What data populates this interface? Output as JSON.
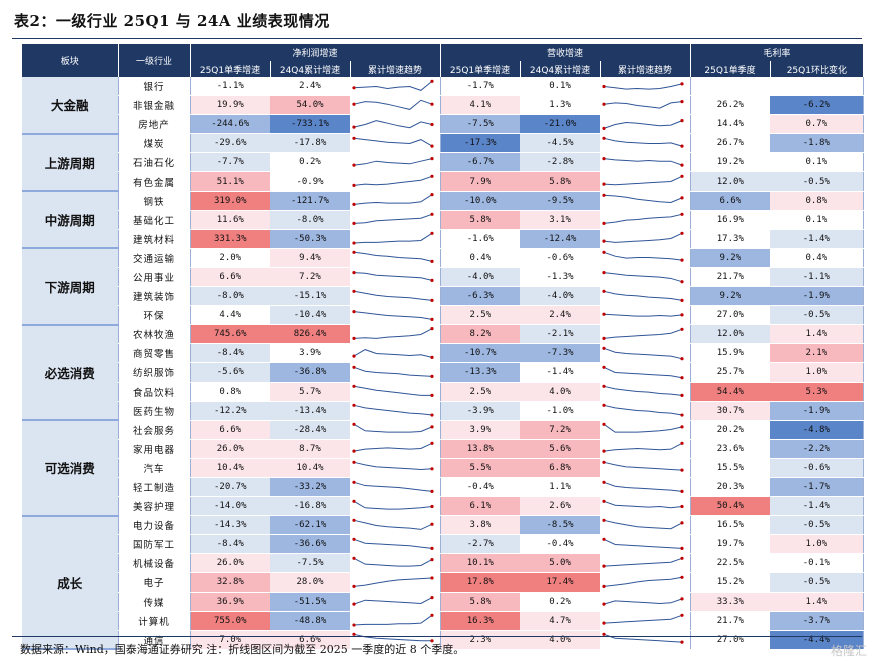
{
  "title": "表2：一级行业 25Q1 与 24A 业绩表现情况",
  "header": {
    "sector": "板块",
    "industry": "一级行业",
    "g_profit": "净利润增速",
    "g_revenue": "营收增速",
    "g_margin": "毛利率",
    "c_q": "25Q1单季增速",
    "c_a": "24Q4累计增速",
    "c_trend": "累计增速趋势",
    "c_m1": "25Q1单季度",
    "c_m2": "25Q1环比变化"
  },
  "colors": {
    "header_bg": "#1f3864",
    "sector_bg": "#dbe4f1",
    "pos_strong": "#f08080",
    "pos_mid": "#f7b8be",
    "pos_light": "#fce5e8",
    "neg_strong": "#5b85c9",
    "neg_mid": "#9db7e0",
    "neg_light": "#dbe4f1",
    "spark_line": "#2f5597",
    "spark_dot": "#c00000"
  },
  "groups": [
    {
      "name": "大金融",
      "rows": [
        {
          "name": "银行",
          "p1": "-1.1%",
          "p2": "2.4%",
          "r1": "-1.7%",
          "r2": "0.1%",
          "m1": "",
          "m2": "",
          "ps": [
            0.4,
            0.45,
            0.5,
            0.35,
            0.45,
            0.5,
            0.2,
            0.9
          ],
          "rs": [
            0.5,
            0.4,
            0.3,
            0.35,
            0.3,
            0.35,
            0.5,
            0.7
          ]
        },
        {
          "name": "非银金融",
          "p1": "19.9%",
          "p2": "54.0%",
          "r1": "4.1%",
          "r2": "1.3%",
          "m1": "26.2%",
          "m2": "-6.2%",
          "ps": [
            0.6,
            0.8,
            0.75,
            0.6,
            0.4,
            0.2,
            0.9,
            0.6
          ],
          "rs": [
            0.6,
            0.7,
            0.65,
            0.5,
            0.4,
            0.3,
            0.7,
            0.8
          ]
        },
        {
          "name": "房地产",
          "p1": "-244.6%",
          "p2": "-733.1%",
          "r1": "-7.5%",
          "r2": "-21.0%",
          "m1": "14.4%",
          "m2": "0.7%",
          "ps": [
            0.3,
            0.5,
            0.8,
            0.6,
            0.4,
            0.25,
            0.7,
            0.5
          ],
          "rs": [
            0.2,
            0.5,
            0.65,
            0.6,
            0.5,
            0.4,
            0.45,
            0.8
          ]
        }
      ]
    },
    {
      "name": "上游周期",
      "rows": [
        {
          "name": "煤炭",
          "p1": "-29.6%",
          "p2": "-17.8%",
          "r1": "-17.3%",
          "r2": "-4.5%",
          "m1": "26.7%",
          "m2": "-1.8%",
          "ps": [
            0.9,
            0.8,
            0.7,
            0.6,
            0.55,
            0.5,
            0.8,
            0.3
          ],
          "rs": [
            0.9,
            0.7,
            0.6,
            0.55,
            0.5,
            0.5,
            0.55,
            0.3
          ]
        },
        {
          "name": "石油石化",
          "p1": "-7.7%",
          "p2": "0.2%",
          "r1": "-6.7%",
          "r2": "-2.8%",
          "m1": "19.2%",
          "m2": "0.1%",
          "ps": [
            0.3,
            0.4,
            0.6,
            0.5,
            0.45,
            0.4,
            0.6,
            0.8
          ],
          "rs": [
            0.8,
            0.7,
            0.65,
            0.6,
            0.65,
            0.6,
            0.6,
            0.3
          ]
        },
        {
          "name": "有色金属",
          "p1": "51.1%",
          "p2": "-0.9%",
          "r1": "7.9%",
          "r2": "5.8%",
          "m1": "12.0%",
          "m2": "-0.5%",
          "ps": [
            0.2,
            0.3,
            0.25,
            0.3,
            0.4,
            0.5,
            0.6,
            0.9
          ],
          "rs": [
            0.3,
            0.25,
            0.3,
            0.35,
            0.4,
            0.45,
            0.5,
            0.9
          ]
        }
      ]
    },
    {
      "name": "中游周期",
      "rows": [
        {
          "name": "钢铁",
          "p1": "319.0%",
          "p2": "-121.7%",
          "r1": "-10.0%",
          "r2": "-9.5%",
          "m1": "6.6%",
          "m2": "0.8%",
          "ps": [
            0.2,
            0.3,
            0.35,
            0.3,
            0.3,
            0.3,
            0.4,
            0.95
          ],
          "rs": [
            0.9,
            0.85,
            0.75,
            0.6,
            0.5,
            0.4,
            0.35,
            0.7
          ]
        },
        {
          "name": "基础化工",
          "p1": "11.6%",
          "p2": "-8.0%",
          "r1": "5.8%",
          "r2": "3.1%",
          "m1": "16.9%",
          "m2": "0.1%",
          "ps": [
            0.2,
            0.25,
            0.4,
            0.45,
            0.5,
            0.55,
            0.6,
            0.9
          ],
          "rs": [
            0.2,
            0.3,
            0.45,
            0.5,
            0.6,
            0.65,
            0.7,
            0.9
          ]
        },
        {
          "name": "建筑材料",
          "p1": "331.3%",
          "p2": "-50.3%",
          "r1": "-1.6%",
          "r2": "-12.4%",
          "m1": "17.3%",
          "m2": "-1.4%",
          "ps": [
            0.15,
            0.2,
            0.2,
            0.25,
            0.3,
            0.3,
            0.35,
            0.9
          ],
          "rs": [
            0.3,
            0.2,
            0.25,
            0.3,
            0.35,
            0.4,
            0.5,
            0.9
          ]
        }
      ]
    },
    {
      "name": "下游周期",
      "rows": [
        {
          "name": "交通运输",
          "p1": "2.0%",
          "p2": "9.4%",
          "r1": "0.4%",
          "r2": "-0.6%",
          "m1": "9.2%",
          "m2": "0.4%",
          "ps": [
            0.9,
            0.8,
            0.65,
            0.6,
            0.5,
            0.45,
            0.4,
            0.2
          ],
          "rs": [
            0.9,
            0.6,
            0.45,
            0.5,
            0.5,
            0.45,
            0.4,
            0.3
          ]
        },
        {
          "name": "公用事业",
          "p1": "6.6%",
          "p2": "7.2%",
          "r1": "-4.0%",
          "r2": "-1.3%",
          "m1": "21.7%",
          "m2": "-1.1%",
          "ps": [
            0.8,
            0.75,
            0.6,
            0.55,
            0.5,
            0.45,
            0.4,
            0.2
          ],
          "rs": [
            0.8,
            0.7,
            0.6,
            0.55,
            0.5,
            0.45,
            0.35,
            0.1
          ]
        },
        {
          "name": "建筑装饰",
          "p1": "-8.0%",
          "p2": "-15.1%",
          "r1": "-6.3%",
          "r2": "-4.0%",
          "m1": "9.2%",
          "m2": "-1.9%",
          "ps": [
            0.9,
            0.75,
            0.6,
            0.5,
            0.45,
            0.4,
            0.3,
            0.2
          ],
          "rs": [
            0.9,
            0.7,
            0.6,
            0.55,
            0.45,
            0.4,
            0.35,
            0.2
          ]
        },
        {
          "name": "环保",
          "p1": "4.4%",
          "p2": "-10.4%",
          "r1": "2.5%",
          "r2": "2.4%",
          "m1": "27.0%",
          "m2": "-0.5%",
          "ps": [
            0.8,
            0.7,
            0.6,
            0.5,
            0.45,
            0.4,
            0.35,
            0.2
          ],
          "rs": [
            0.6,
            0.55,
            0.5,
            0.45,
            0.45,
            0.5,
            0.45,
            0.55
          ]
        }
      ]
    },
    {
      "name": "必选消费",
      "rows": [
        {
          "name": "农林牧渔",
          "p1": "745.6%",
          "p2": "826.4%",
          "r1": "8.2%",
          "r2": "-2.1%",
          "m1": "12.0%",
          "m2": "1.4%",
          "ps": [
            0.2,
            0.25,
            0.2,
            0.3,
            0.35,
            0.4,
            0.5,
            0.95
          ],
          "rs": [
            0.2,
            0.3,
            0.35,
            0.4,
            0.45,
            0.5,
            0.6,
            0.9
          ]
        },
        {
          "name": "商贸零售",
          "p1": "-8.4%",
          "p2": "3.9%",
          "r1": "-10.7%",
          "r2": "-7.3%",
          "m1": "15.9%",
          "m2": "2.1%",
          "ps": [
            0.3,
            0.8,
            0.5,
            0.45,
            0.4,
            0.35,
            0.4,
            0.2
          ],
          "rs": [
            0.9,
            0.6,
            0.5,
            0.45,
            0.4,
            0.35,
            0.3,
            0.1
          ]
        },
        {
          "name": "纺织服饰",
          "p1": "-5.6%",
          "p2": "-36.8%",
          "r1": "-13.3%",
          "r2": "-1.4%",
          "m1": "25.7%",
          "m2": "1.0%",
          "ps": [
            0.9,
            0.6,
            0.5,
            0.45,
            0.4,
            0.3,
            0.25,
            0.2
          ],
          "rs": [
            0.9,
            0.5,
            0.45,
            0.4,
            0.35,
            0.3,
            0.25,
            0.1
          ]
        },
        {
          "name": "食品饮料",
          "p1": "0.8%",
          "p2": "5.7%",
          "r1": "2.5%",
          "r2": "4.0%",
          "m1": "54.4%",
          "m2": "5.3%",
          "ps": [
            0.9,
            0.75,
            0.6,
            0.5,
            0.4,
            0.3,
            0.2,
            0.2
          ],
          "rs": [
            0.9,
            0.7,
            0.6,
            0.5,
            0.45,
            0.35,
            0.3,
            0.2
          ]
        },
        {
          "name": "医药生物",
          "p1": "-12.2%",
          "p2": "-13.4%",
          "r1": "-3.9%",
          "r2": "-1.0%",
          "m1": "30.7%",
          "m2": "-1.9%",
          "ps": [
            0.9,
            0.7,
            0.6,
            0.5,
            0.4,
            0.3,
            0.25,
            0.15
          ],
          "rs": [
            0.9,
            0.7,
            0.6,
            0.5,
            0.45,
            0.35,
            0.3,
            0.15
          ]
        }
      ]
    },
    {
      "name": "可选消费",
      "rows": [
        {
          "name": "社会服务",
          "p1": "6.6%",
          "p2": "-28.4%",
          "r1": "3.9%",
          "r2": "7.2%",
          "m1": "20.2%",
          "m2": "-4.8%",
          "ps": [
            0.9,
            0.4,
            0.35,
            0.3,
            0.3,
            0.3,
            0.35,
            0.7
          ],
          "rs": [
            0.9,
            0.3,
            0.3,
            0.3,
            0.35,
            0.4,
            0.5,
            0.7
          ]
        },
        {
          "name": "家用电器",
          "p1": "26.0%",
          "p2": "8.7%",
          "r1": "13.8%",
          "r2": "5.6%",
          "m1": "23.6%",
          "m2": "-2.2%",
          "ps": [
            0.3,
            0.45,
            0.5,
            0.55,
            0.5,
            0.45,
            0.5,
            0.9
          ],
          "rs": [
            0.3,
            0.4,
            0.45,
            0.5,
            0.45,
            0.4,
            0.45,
            0.9
          ]
        },
        {
          "name": "汽车",
          "p1": "10.4%",
          "p2": "10.4%",
          "r1": "5.5%",
          "r2": "6.8%",
          "m1": "15.5%",
          "m2": "-0.6%",
          "ps": [
            0.9,
            0.7,
            0.55,
            0.5,
            0.45,
            0.4,
            0.35,
            0.4
          ],
          "rs": [
            0.9,
            0.7,
            0.55,
            0.5,
            0.45,
            0.4,
            0.35,
            0.3
          ]
        },
        {
          "name": "轻工制造",
          "p1": "-20.7%",
          "p2": "-33.2%",
          "r1": "-0.4%",
          "r2": "1.1%",
          "m1": "20.3%",
          "m2": "-1.7%",
          "ps": [
            0.9,
            0.65,
            0.6,
            0.55,
            0.5,
            0.4,
            0.3,
            0.2
          ],
          "rs": [
            0.9,
            0.6,
            0.5,
            0.45,
            0.4,
            0.35,
            0.3,
            0.2
          ]
        },
        {
          "name": "美容护理",
          "p1": "-14.0%",
          "p2": "-16.8%",
          "r1": "6.1%",
          "r2": "2.6%",
          "m1": "50.4%",
          "m2": "-1.4%",
          "ps": [
            0.9,
            0.4,
            0.35,
            0.3,
            0.3,
            0.35,
            0.4,
            0.5
          ],
          "rs": [
            0.9,
            0.6,
            0.55,
            0.5,
            0.45,
            0.5,
            0.4,
            0.5
          ]
        }
      ]
    },
    {
      "name": "成长",
      "rows": [
        {
          "name": "电力设备",
          "p1": "-14.3%",
          "p2": "-62.1%",
          "r1": "3.8%",
          "r2": "-8.5%",
          "m1": "16.5%",
          "m2": "-0.5%",
          "ps": [
            0.9,
            0.7,
            0.5,
            0.4,
            0.35,
            0.3,
            0.2,
            0.6
          ],
          "rs": [
            0.9,
            0.7,
            0.55,
            0.4,
            0.35,
            0.3,
            0.25,
            0.7
          ]
        },
        {
          "name": "国防军工",
          "p1": "-8.4%",
          "p2": "-36.6%",
          "r1": "-2.7%",
          "r2": "-0.4%",
          "m1": "19.7%",
          "m2": "1.0%",
          "ps": [
            0.9,
            0.6,
            0.55,
            0.5,
            0.45,
            0.4,
            0.3,
            0.2
          ],
          "rs": [
            0.9,
            0.5,
            0.45,
            0.4,
            0.35,
            0.3,
            0.25,
            0.2
          ]
        },
        {
          "name": "机械设备",
          "p1": "26.0%",
          "p2": "-7.5%",
          "r1": "10.1%",
          "r2": "5.0%",
          "m1": "22.5%",
          "m2": "-0.1%",
          "ps": [
            0.9,
            0.45,
            0.4,
            0.35,
            0.3,
            0.3,
            0.35,
            0.8
          ],
          "rs": [
            0.3,
            0.35,
            0.4,
            0.45,
            0.5,
            0.55,
            0.6,
            0.9
          ]
        },
        {
          "name": "电子",
          "p1": "32.8%",
          "p2": "28.0%",
          "r1": "17.8%",
          "r2": "17.4%",
          "m1": "15.2%",
          "m2": "-0.5%",
          "ps": [
            0.2,
            0.3,
            0.45,
            0.6,
            0.7,
            0.75,
            0.8,
            0.85
          ],
          "rs": [
            0.2,
            0.3,
            0.4,
            0.55,
            0.65,
            0.7,
            0.75,
            0.9
          ]
        },
        {
          "name": "传媒",
          "p1": "36.9%",
          "p2": "-51.5%",
          "r1": "5.8%",
          "r2": "0.2%",
          "m1": "33.3%",
          "m2": "1.4%",
          "ps": [
            0.3,
            0.6,
            0.55,
            0.5,
            0.45,
            0.4,
            0.35,
            0.8
          ],
          "rs": [
            0.3,
            0.55,
            0.5,
            0.45,
            0.4,
            0.35,
            0.4,
            0.7
          ]
        },
        {
          "name": "计算机",
          "p1": "755.0%",
          "p2": "-48.8%",
          "r1": "16.3%",
          "r2": "4.7%",
          "m1": "21.7%",
          "m2": "-3.7%",
          "ps": [
            0.15,
            0.2,
            0.2,
            0.2,
            0.25,
            0.25,
            0.3,
            0.9
          ],
          "rs": [
            0.3,
            0.35,
            0.4,
            0.45,
            0.5,
            0.55,
            0.6,
            0.9
          ]
        },
        {
          "name": "通信",
          "p1": "7.0%",
          "p2": "6.6%",
          "r1": "2.3%",
          "r2": "4.0%",
          "m1": "27.0%",
          "m2": "-4.4%",
          "ps": [
            0.9,
            0.7,
            0.6,
            0.55,
            0.5,
            0.45,
            0.4,
            0.4
          ],
          "rs": [
            0.9,
            0.6,
            0.55,
            0.5,
            0.45,
            0.4,
            0.35,
            0.3
          ]
        }
      ]
    }
  ],
  "footer": "数据来源：Wind，国泰海通证券研究 注：折线图区间为截至 2025 一季度的近 8 个季度。",
  "watermark": "格隆汇"
}
